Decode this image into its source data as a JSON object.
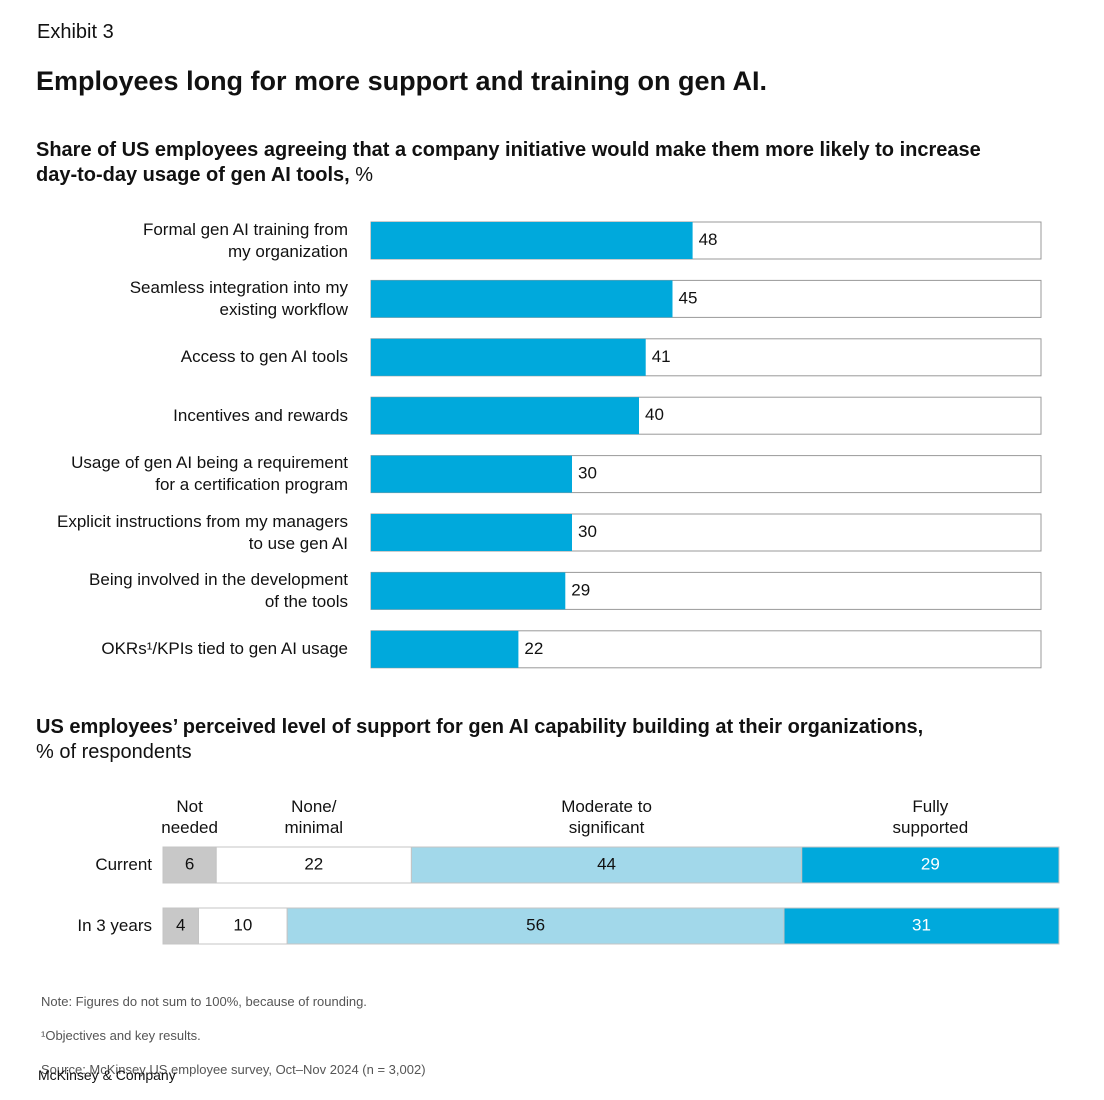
{
  "exhibit": "Exhibit 3",
  "headline": "Employees long for more support and training on gen AI.",
  "chart_data": [
    {
      "type": "bar",
      "orientation": "horizontal",
      "title": "Share of US employees agreeing that a company initiative would make them more likely to increase day-to-day usage of gen AI tools,",
      "unit": "%",
      "categories": [
        "Formal gen AI training from\nmy organization",
        "Seamless integration into my\nexisting workflow",
        "Access to gen AI tools",
        "Incentives and rewards",
        "Usage of gen AI being a requirement\nfor a certification program",
        "Explicit instructions from my managers\nto use gen AI",
        "Being involved in the development\nof the tools",
        "OKRs¹/KPIs tied to gen AI usage"
      ],
      "values": [
        48,
        45,
        41,
        40,
        30,
        30,
        29,
        22
      ],
      "color": "#00a9dc",
      "xlim": [
        0,
        100
      ]
    },
    {
      "type": "stacked-bar",
      "orientation": "horizontal",
      "title": "US employees’ perceived level of support for gen AI capability building at their organizations,",
      "subtitle": "% of respondents",
      "categories": [
        "Current",
        "In 3 years"
      ],
      "series": [
        {
          "name": "Not\nneeded",
          "color": "#c8c8c8",
          "values": [
            6,
            4
          ]
        },
        {
          "name": "None/\nminimal",
          "color": "#ffffff",
          "values": [
            22,
            10
          ]
        },
        {
          "name": "Moderate to\nsignificant",
          "color": "#a2d8ea",
          "values": [
            44,
            56
          ]
        },
        {
          "name": "Fully\nsupported",
          "color": "#00a9dc",
          "values": [
            29,
            31
          ]
        }
      ],
      "xlim": [
        0,
        101
      ]
    }
  ],
  "notes": [
    "Note: Figures do not sum to 100%, because of rounding.",
    "¹Objectives and key results.",
    "Source: McKinsey US employee survey, Oct–Nov 2024 (n = 3,002)"
  ],
  "brand": "McKinsey & Company"
}
